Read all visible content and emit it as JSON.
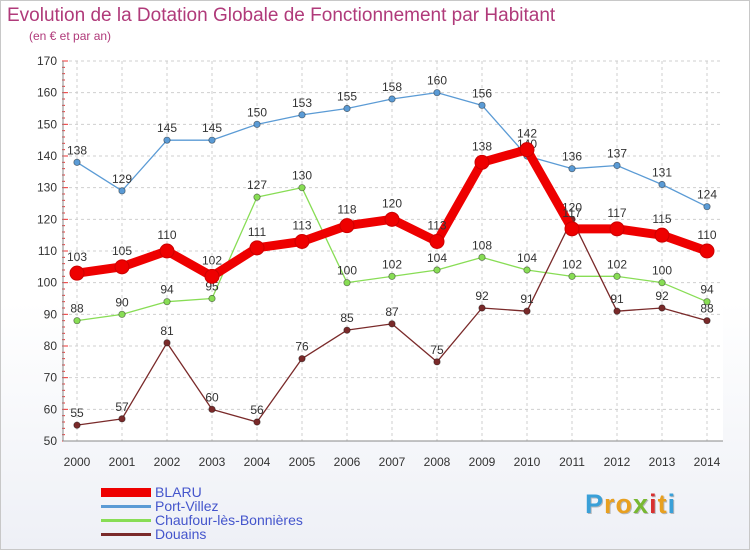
{
  "header": {
    "title": "Evolution de la Dotation Globale de Fonctionnement par Habitant",
    "subtitle": "(en € et par an)"
  },
  "brand": {
    "letters": [
      "P",
      "r",
      "o",
      "x",
      "i",
      "t",
      "i"
    ],
    "colors": [
      "#3aa0d8",
      "#e8a020",
      "#e8a020",
      "#78b832",
      "#d83030",
      "#e8a020",
      "#3aa0d8"
    ]
  },
  "chart_data": {
    "type": "line",
    "title": "Evolution de la Dotation Globale de Fonctionnement par Habitant",
    "subtitle": "(en € et par an)",
    "xlabel": "",
    "ylabel": "",
    "ylim": [
      50,
      170
    ],
    "yticks": [
      50,
      60,
      70,
      80,
      90,
      100,
      110,
      120,
      130,
      140,
      150,
      160,
      170
    ],
    "grid": true,
    "legend_position": "bottom-left",
    "categories": [
      "2000",
      "2001",
      "2002",
      "2003",
      "2004",
      "2005",
      "2006",
      "2007",
      "2008",
      "2009",
      "2010",
      "2011",
      "2012",
      "2013",
      "2014"
    ],
    "series": [
      {
        "name": "BLARU",
        "color": "#ee0000",
        "values": [
          103,
          105,
          110,
          102,
          111,
          113,
          118,
          120,
          113,
          138,
          142,
          117,
          117,
          115,
          110
        ]
      },
      {
        "name": "Port-Villez",
        "color": "#5b9bd5",
        "values": [
          138,
          129,
          145,
          145,
          150,
          153,
          155,
          158,
          160,
          156,
          140,
          136,
          137,
          131,
          124
        ]
      },
      {
        "name": "Chaufour-lès-Bonnières",
        "color": "#88dd55",
        "values": [
          88,
          90,
          94,
          95,
          127,
          130,
          100,
          102,
          104,
          108,
          104,
          102,
          102,
          100,
          94
        ]
      },
      {
        "name": "Douains",
        "color": "#7a2a2a",
        "values": [
          55,
          57,
          81,
          60,
          56,
          76,
          85,
          87,
          75,
          92,
          91,
          120,
          91,
          92,
          88
        ]
      }
    ]
  }
}
